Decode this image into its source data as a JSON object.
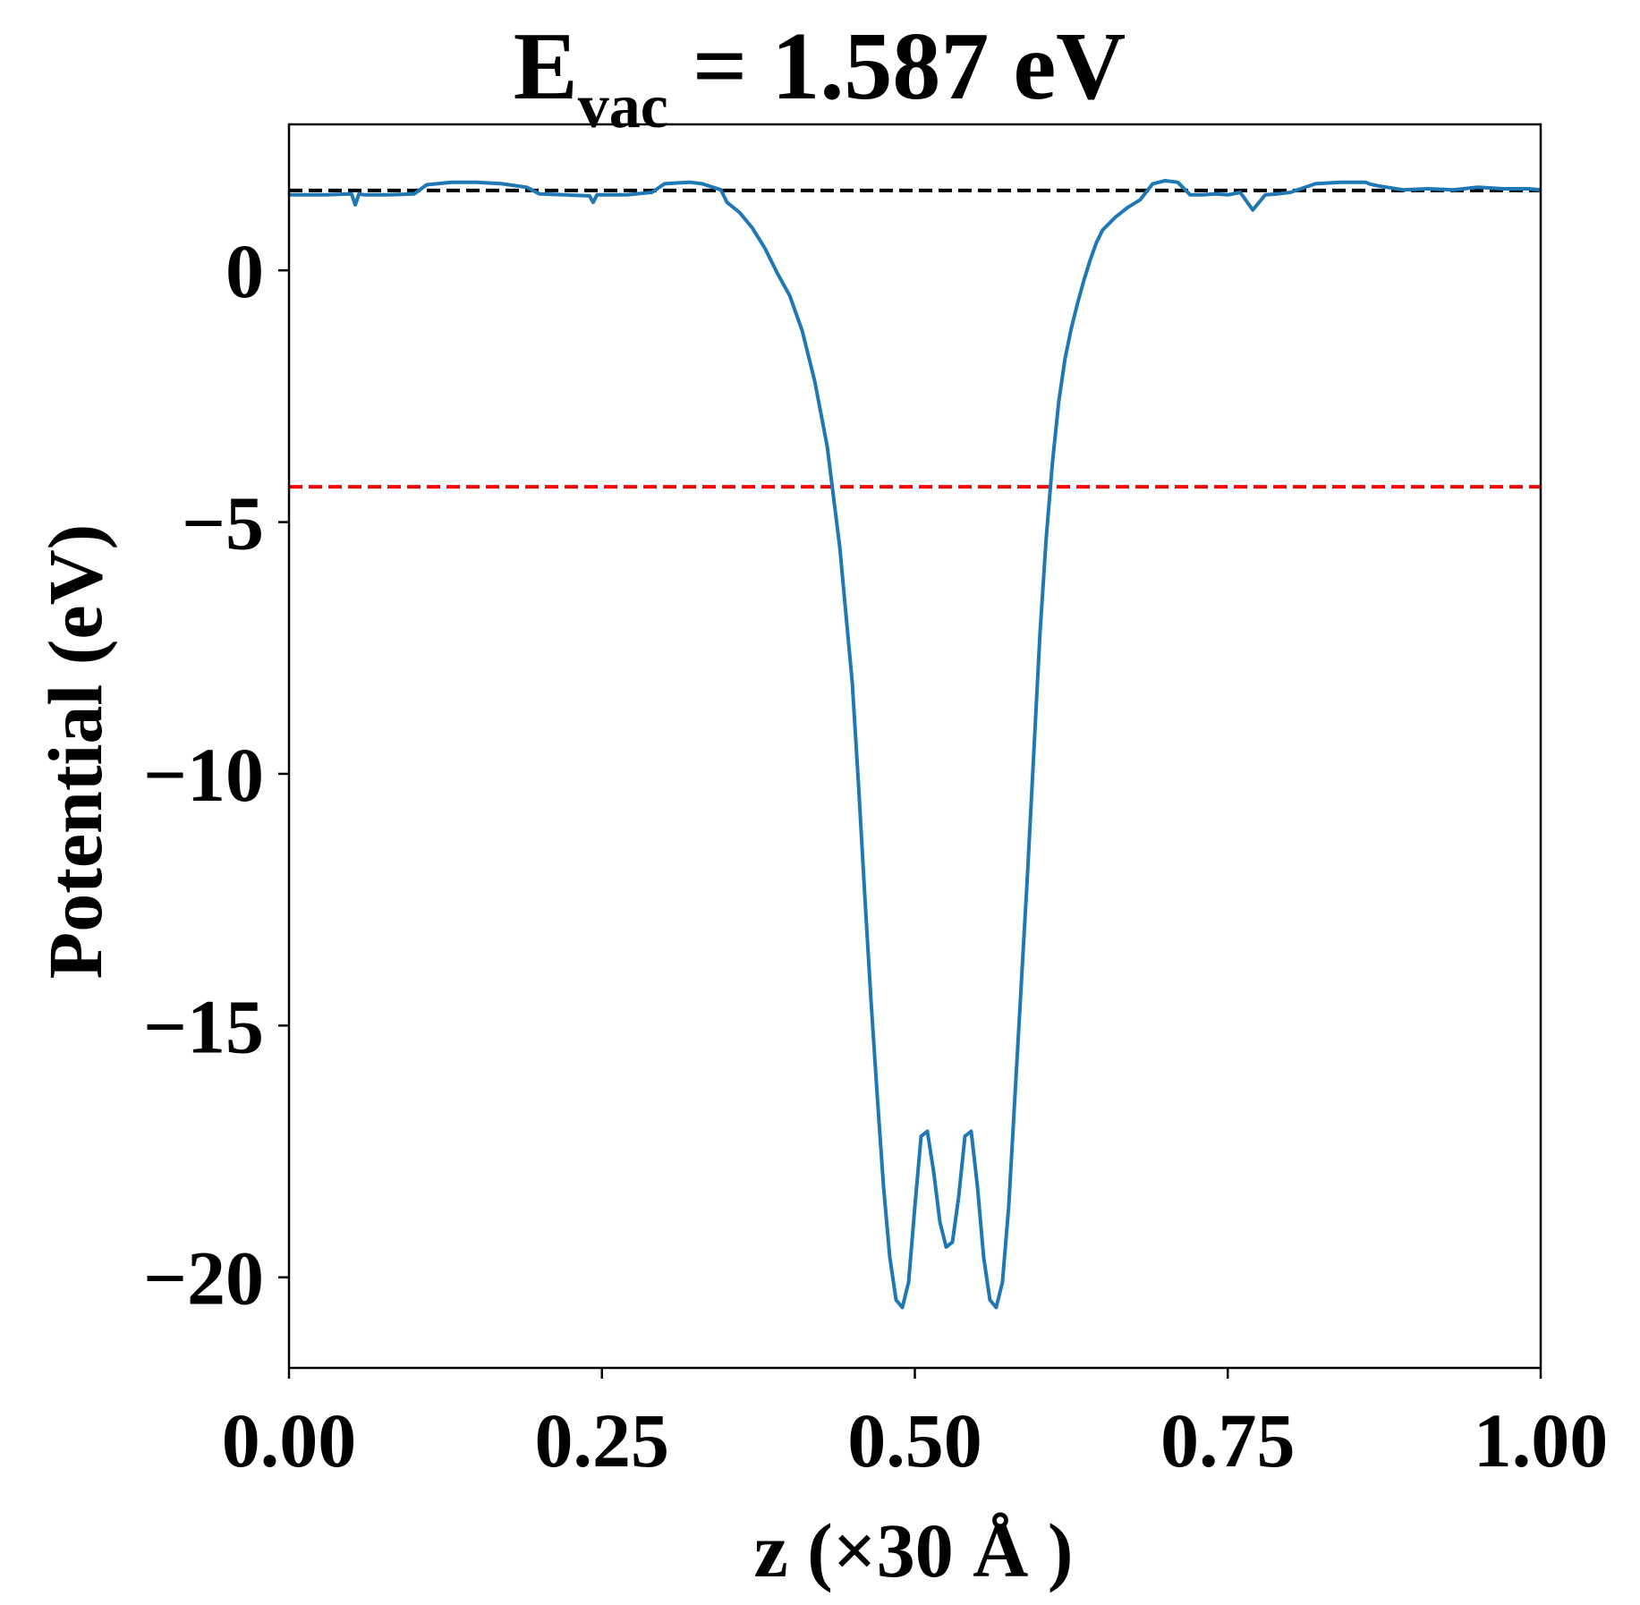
{
  "chart_data": {
    "type": "line",
    "title": "E",
    "title_subscript": "vac",
    "title_rest": " = 1.587 eV",
    "xlabel": "z (×30 Å )",
    "ylabel": "Potential (eV)",
    "xlim": [
      0.0,
      1.0
    ],
    "ylim": [
      -21.8,
      2.9
    ],
    "xticks": [
      0.0,
      0.25,
      0.5,
      0.75,
      1.0
    ],
    "xtick_labels": [
      "0.00",
      "0.25",
      "0.50",
      "0.75",
      "1.00"
    ],
    "yticks": [
      0,
      -5,
      -10,
      -15,
      -20
    ],
    "ytick_labels": [
      "0",
      "−5",
      "−10",
      "−15",
      "−20"
    ],
    "grid": false,
    "reference_lines": [
      {
        "y": 1.587,
        "color": "#000000",
        "style": "dashed"
      },
      {
        "y": -4.3,
        "color": "#ff0000",
        "style": "dashed"
      }
    ],
    "series": [
      {
        "color": "#1f77b4",
        "x": [
          0.0,
          0.03,
          0.05,
          0.053,
          0.056,
          0.06,
          0.08,
          0.1,
          0.11,
          0.13,
          0.15,
          0.17,
          0.19,
          0.2,
          0.22,
          0.24,
          0.243,
          0.246,
          0.25,
          0.27,
          0.29,
          0.3,
          0.32,
          0.33,
          0.345,
          0.35,
          0.36,
          0.37,
          0.38,
          0.39,
          0.4,
          0.41,
          0.42,
          0.43,
          0.44,
          0.45,
          0.455,
          0.46,
          0.465,
          0.47,
          0.475,
          0.48,
          0.485,
          0.49,
          0.495,
          0.5,
          0.505,
          0.51,
          0.515,
          0.52,
          0.525,
          0.53,
          0.535,
          0.54,
          0.545,
          0.55,
          0.555,
          0.56,
          0.565,
          0.57,
          0.575,
          0.58,
          0.585,
          0.59,
          0.595,
          0.6,
          0.605,
          0.61,
          0.615,
          0.62,
          0.625,
          0.63,
          0.635,
          0.64,
          0.645,
          0.65,
          0.66,
          0.67,
          0.68,
          0.69,
          0.7,
          0.71,
          0.72,
          0.73,
          0.74,
          0.75,
          0.76,
          0.77,
          0.78,
          0.79,
          0.8,
          0.82,
          0.84,
          0.86,
          0.863,
          0.866,
          0.87,
          0.89,
          0.91,
          0.93,
          0.95,
          0.97,
          0.99,
          1.0
        ],
        "y": [
          1.5,
          1.5,
          1.52,
          1.3,
          1.52,
          1.5,
          1.5,
          1.52,
          1.7,
          1.75,
          1.75,
          1.72,
          1.65,
          1.52,
          1.5,
          1.48,
          1.35,
          1.5,
          1.5,
          1.5,
          1.55,
          1.72,
          1.75,
          1.72,
          1.6,
          1.35,
          1.15,
          0.85,
          0.45,
          -0.05,
          -0.5,
          -1.2,
          -2.2,
          -3.5,
          -5.5,
          -8.2,
          -10.2,
          -12.4,
          -14.5,
          -16.4,
          -18.2,
          -19.6,
          -20.45,
          -20.6,
          -20.1,
          -18.6,
          -17.2,
          -17.1,
          -17.9,
          -18.9,
          -19.4,
          -19.3,
          -18.4,
          -17.2,
          -17.1,
          -18.2,
          -19.6,
          -20.45,
          -20.6,
          -20.1,
          -18.6,
          -16.4,
          -14.2,
          -12.0,
          -9.6,
          -7.2,
          -5.3,
          -3.8,
          -2.6,
          -1.75,
          -1.15,
          -0.65,
          -0.2,
          0.2,
          0.55,
          0.8,
          1.05,
          1.25,
          1.4,
          1.72,
          1.78,
          1.75,
          1.5,
          1.5,
          1.52,
          1.5,
          1.55,
          1.2,
          1.5,
          1.52,
          1.55,
          1.72,
          1.75,
          1.75,
          1.72,
          1.7,
          1.68,
          1.6,
          1.62,
          1.6,
          1.65,
          1.62,
          1.62,
          1.6
        ]
      }
    ]
  }
}
